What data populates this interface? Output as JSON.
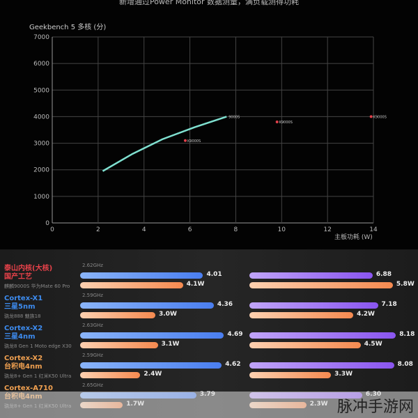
{
  "caption": "新增通过Power Monitor 数据测量，满负载测得功耗",
  "watermark": "脉冲手游网",
  "chart_data": {
    "type": "scatter",
    "title": "Geekbench 5 多核 (分)",
    "xlabel": "主板功耗 (W)",
    "ylabel": "",
    "xlim": [
      0,
      14
    ],
    "ylim": [
      0,
      7000
    ],
    "xticks": [
      0,
      2,
      4,
      6,
      8,
      10,
      12,
      14
    ],
    "yticks": [
      0,
      1000,
      2000,
      3000,
      4000,
      5000,
      6000,
      7000
    ],
    "grid": true,
    "curve": {
      "label": "9000S",
      "color": "#7fe0d0",
      "points": [
        [
          2.2,
          1950
        ],
        [
          3.5,
          2600
        ],
        [
          4.8,
          3150
        ],
        [
          6.2,
          3600
        ],
        [
          7.6,
          4000
        ]
      ]
    },
    "points": [
      {
        "label": "K9000S",
        "x": 5.8,
        "y": 3100,
        "color": "#e0404a"
      },
      {
        "label": "K9000S",
        "x": 9.8,
        "y": 3800,
        "color": "#e0404a"
      },
      {
        "label": "K9000S",
        "x": 13.9,
        "y": 4000,
        "color": "#e0404a"
      }
    ]
  },
  "bar_rows": [
    {
      "core": "泰山内核(大核)",
      "process": "国产工艺",
      "device": "麒麟9000S 华为Mate 60 Pro",
      "color": "#e8424a",
      "freq": "2.62GHz",
      "single": 4.01,
      "single_label": "4.01",
      "single_power": "4.1W",
      "single_power_v": 4.1,
      "multi": 6.88,
      "multi_label": "6.88",
      "multi_power": "5.8W",
      "multi_power_v": 5.8
    },
    {
      "core": "Cortex-X1",
      "process": "三星5nm",
      "device": "骁龙888 魅族18",
      "color": "#3d8cf0",
      "freq": "2.59GHz",
      "single": 4.36,
      "single_label": "4.36",
      "single_power": "3.0W",
      "single_power_v": 3.0,
      "multi": 7.18,
      "multi_label": "7.18",
      "multi_power": "4.2W",
      "multi_power_v": 4.2
    },
    {
      "core": "Cortex-X2",
      "process": "三星4nm",
      "device": "骁龙8 Gen 1 Moto edge X30",
      "color": "#3d8cf0",
      "freq": "2.63GHz",
      "single": 4.69,
      "single_label": "4.69",
      "single_power": "3.1W",
      "single_power_v": 3.1,
      "multi": 8.18,
      "multi_label": "8.18",
      "multi_power": "4.5W",
      "multi_power_v": 4.5
    },
    {
      "core": "Cortex-X2",
      "process": "台积电4nm",
      "device": "骁龙8+ Gen 1 红米K50 Ultra",
      "color": "#f0a050",
      "freq": "2.59GHz",
      "single": 4.62,
      "single_label": "4.62",
      "single_power": "2.4W",
      "single_power_v": 2.4,
      "multi": 8.08,
      "multi_label": "8.08",
      "multi_power": "3.3W",
      "multi_power_v": 3.3
    },
    {
      "core": "Cortex-A710",
      "process": "台积电4nm",
      "device": "骁龙8+ Gen 1 红米K50 Ultra",
      "color": "#f0a050",
      "freq": "2.65GHz",
      "single": 3.79,
      "single_label": "3.79",
      "single_power": "1.7W",
      "single_power_v": 1.7,
      "multi": 6.3,
      "multi_label": "6.30",
      "multi_power": "2.3W",
      "multi_power_v": 2.3
    }
  ],
  "colors": {
    "single": "#4a7ef0",
    "multi": "#8a55f0",
    "power": "#f58a50"
  }
}
